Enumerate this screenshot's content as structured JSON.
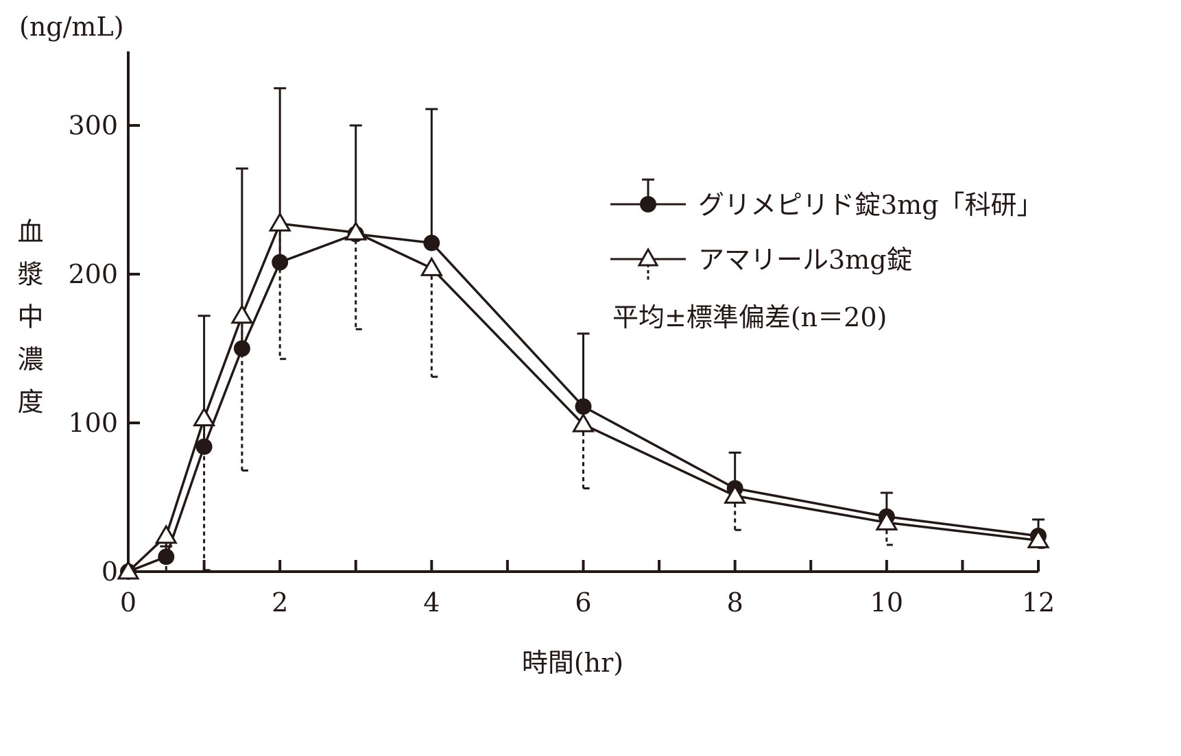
{
  "chart_data": {
    "type": "line",
    "title": "",
    "ylabel_unit": "(ng/mL)",
    "ylabel": "血漿中濃度",
    "xlabel": "時間(hr)",
    "xlim": [
      0,
      12
    ],
    "ylim": [
      0,
      350
    ],
    "x_ticks": [
      0,
      2,
      4,
      6,
      8,
      10,
      12
    ],
    "y_ticks": [
      0,
      100,
      200,
      300
    ],
    "grid": false,
    "legend_position": "right",
    "legend_note": "平均±標準偏差(n＝20)",
    "x": [
      0,
      0.5,
      1,
      1.5,
      2,
      3,
      4,
      6,
      8,
      10,
      12
    ],
    "series": [
      {
        "name": "グリメピリド錠3mg「科研」",
        "marker": "filled-circle",
        "error_direction": "up",
        "values": [
          0,
          10,
          84,
          150,
          208,
          227,
          221,
          111,
          56,
          37,
          24
        ],
        "sd": [
          0,
          7,
          88,
          121,
          117,
          73,
          90,
          49,
          24,
          16,
          11
        ]
      },
      {
        "name": "アマリール3mg錠",
        "marker": "open-triangle",
        "error_direction": "down",
        "values": [
          0,
          24,
          103,
          172,
          234,
          228,
          204,
          99,
          51,
          33,
          21
        ],
        "sd": [
          0,
          24,
          102,
          104,
          91,
          65,
          73,
          43,
          23,
          15,
          5
        ]
      }
    ],
    "color": "#231815"
  }
}
